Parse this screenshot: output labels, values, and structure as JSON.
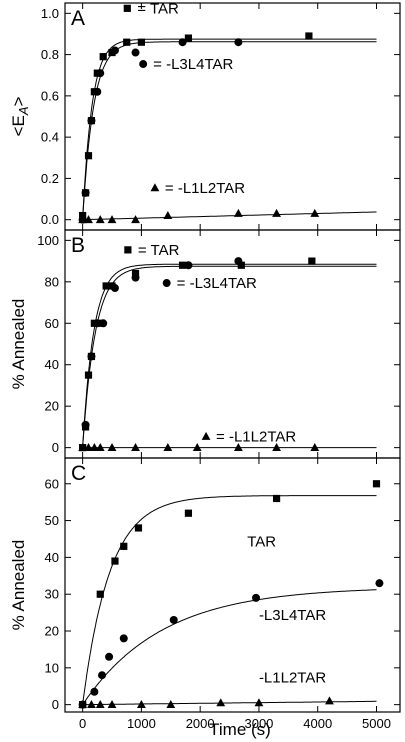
{
  "figure": {
    "x_axis_title": "Time (s)"
  },
  "chart_data": [
    {
      "type": "scatter",
      "panel": "A",
      "ylabel_base": "<E",
      "ylabel_sub": "A",
      "ylabel_close": ">",
      "ylim": [
        -0.05,
        1.05
      ],
      "xlim": [
        -300,
        5400
      ],
      "yticks": [
        "0.0",
        "0.2",
        "0.4",
        "0.6",
        "0.8",
        "1.0"
      ],
      "series": [
        {
          "name": "= TAR",
          "marker": "square",
          "x": [
            0,
            50,
            100,
            150,
            200,
            250,
            350,
            500,
            750,
            1000,
            1800,
            3850
          ],
          "y": [
            0.02,
            0.13,
            0.31,
            0.48,
            0.62,
            0.71,
            0.79,
            0.81,
            0.86,
            0.86,
            0.88,
            0.89
          ]
        },
        {
          "name": "-L3L4TAR",
          "marker": "circle",
          "x": [
            0,
            50,
            150,
            250,
            300,
            550,
            900,
            1700,
            2650
          ],
          "y": [
            0.0,
            0.13,
            0.48,
            0.62,
            0.71,
            0.82,
            0.81,
            0.86,
            0.86
          ]
        },
        {
          "name": "= -L1L2TAR",
          "marker": "triangle",
          "x": [
            0,
            100,
            300,
            500,
            900,
            1450,
            2650,
            3300,
            3950
          ],
          "y": [
            0.0,
            0.0,
            0.0,
            0.0,
            0.0,
            0.02,
            0.03,
            0.03,
            0.03
          ]
        }
      ],
      "fits": [
        {
          "series": "TAR",
          "ymax": 0.875,
          "tau": 160
        },
        {
          "series": "-L3L4TAR",
          "ymax": 0.862,
          "tau": 185
        },
        {
          "series": "-L1L2TAR",
          "slope": 7.5e-06
        }
      ],
      "labels": [
        {
          "text": "= TAR",
          "marker": "square",
          "x": 760,
          "y": 1.0
        },
        {
          "text": "= -L3L4TAR",
          "marker": "circle",
          "x": 1030,
          "y": 0.73
        },
        {
          "text": "= -L1L2TAR",
          "marker": "triangle",
          "x": 1230,
          "y": 0.13
        }
      ]
    },
    {
      "type": "scatter",
      "panel": "B",
      "ylabel": "% Annealed",
      "ylim": [
        -5,
        105
      ],
      "xlim": [
        -300,
        5400
      ],
      "yticks": [
        "0",
        "20",
        "40",
        "60",
        "80",
        "100"
      ],
      "series": [
        {
          "name": "= TAR",
          "marker": "square",
          "x": [
            0,
            50,
            100,
            150,
            200,
            300,
            400,
            500,
            900,
            1700,
            2700,
            3900
          ],
          "y": [
            0,
            10,
            35,
            44,
            60,
            60,
            78,
            78,
            84,
            88,
            88,
            90
          ]
        },
        {
          "name": "-L3L4TAR",
          "marker": "circle",
          "x": [
            50,
            150,
            250,
            350,
            550,
            900,
            1800,
            2650
          ],
          "y": [
            11,
            44,
            60,
            60,
            77,
            82,
            88,
            90
          ]
        },
        {
          "name": "= -L1L2TAR",
          "marker": "triangle",
          "x": [
            0,
            100,
            200,
            300,
            500,
            900,
            1450,
            1950,
            2650,
            3300,
            3950
          ],
          "y": [
            0,
            0,
            0,
            0,
            0,
            0,
            0,
            0,
            0,
            0,
            0
          ]
        }
      ],
      "fits": [
        {
          "series": "TAR",
          "ymax": 88.5,
          "tau": 190
        },
        {
          "series": "-L3L4TAR",
          "ymax": 87.5,
          "tau": 215
        },
        {
          "series": "-L1L2TAR",
          "slope": 0
        }
      ],
      "labels": [
        {
          "text": "= TAR",
          "marker": "square",
          "x": 770,
          "y": 93
        },
        {
          "text": "= -L3L4TAR",
          "marker": "circle",
          "x": 1430,
          "y": 77
        },
        {
          "text": "= -L1L2TAR",
          "marker": "triangle",
          "x": 2100,
          "y": 3
        }
      ]
    },
    {
      "type": "scatter",
      "panel": "C",
      "ylabel": "% Annealed",
      "ylim": [
        -2,
        67
      ],
      "xlim": [
        -300,
        5400
      ],
      "yticks": [
        "0",
        "10",
        "20",
        "30",
        "40",
        "50",
        "60"
      ],
      "xticks": [
        "0",
        "1000",
        "2000",
        "3000",
        "4000",
        "5000"
      ],
      "series": [
        {
          "name": "TAR",
          "marker": "square",
          "x": [
            0,
            300,
            550,
            700,
            950,
            1800,
            3300,
            5000
          ],
          "y": [
            0,
            30,
            39,
            43,
            48,
            52,
            56,
            60
          ]
        },
        {
          "name": "-L3L4TAR",
          "marker": "circle",
          "x": [
            0,
            200,
            330,
            450,
            700,
            1550,
            2950,
            5050
          ],
          "y": [
            0,
            3.5,
            8,
            13,
            18,
            23,
            29,
            33
          ]
        },
        {
          "name": "-L1L2TAR",
          "marker": "triangle",
          "x": [
            0,
            150,
            300,
            500,
            1000,
            1500,
            2350,
            3000,
            4200
          ],
          "y": [
            0,
            0,
            0,
            0,
            0,
            0,
            0.5,
            0.5,
            1
          ]
        }
      ],
      "fits": [
        {
          "series": "TAR",
          "ymax": 56.8,
          "tau": 460
        },
        {
          "series": "-L3L4TAR",
          "ymax": 32,
          "tau": 1350
        },
        {
          "series": "-L1L2TAR",
          "slope": 0.00018
        }
      ],
      "labels": [
        {
          "text": "TAR",
          "x": 2800,
          "y": 43
        },
        {
          "text": "-L3L4TAR",
          "x": 3000,
          "y": 23
        },
        {
          "text": "-L1L2TAR",
          "x": 3000,
          "y": 6
        }
      ]
    }
  ]
}
